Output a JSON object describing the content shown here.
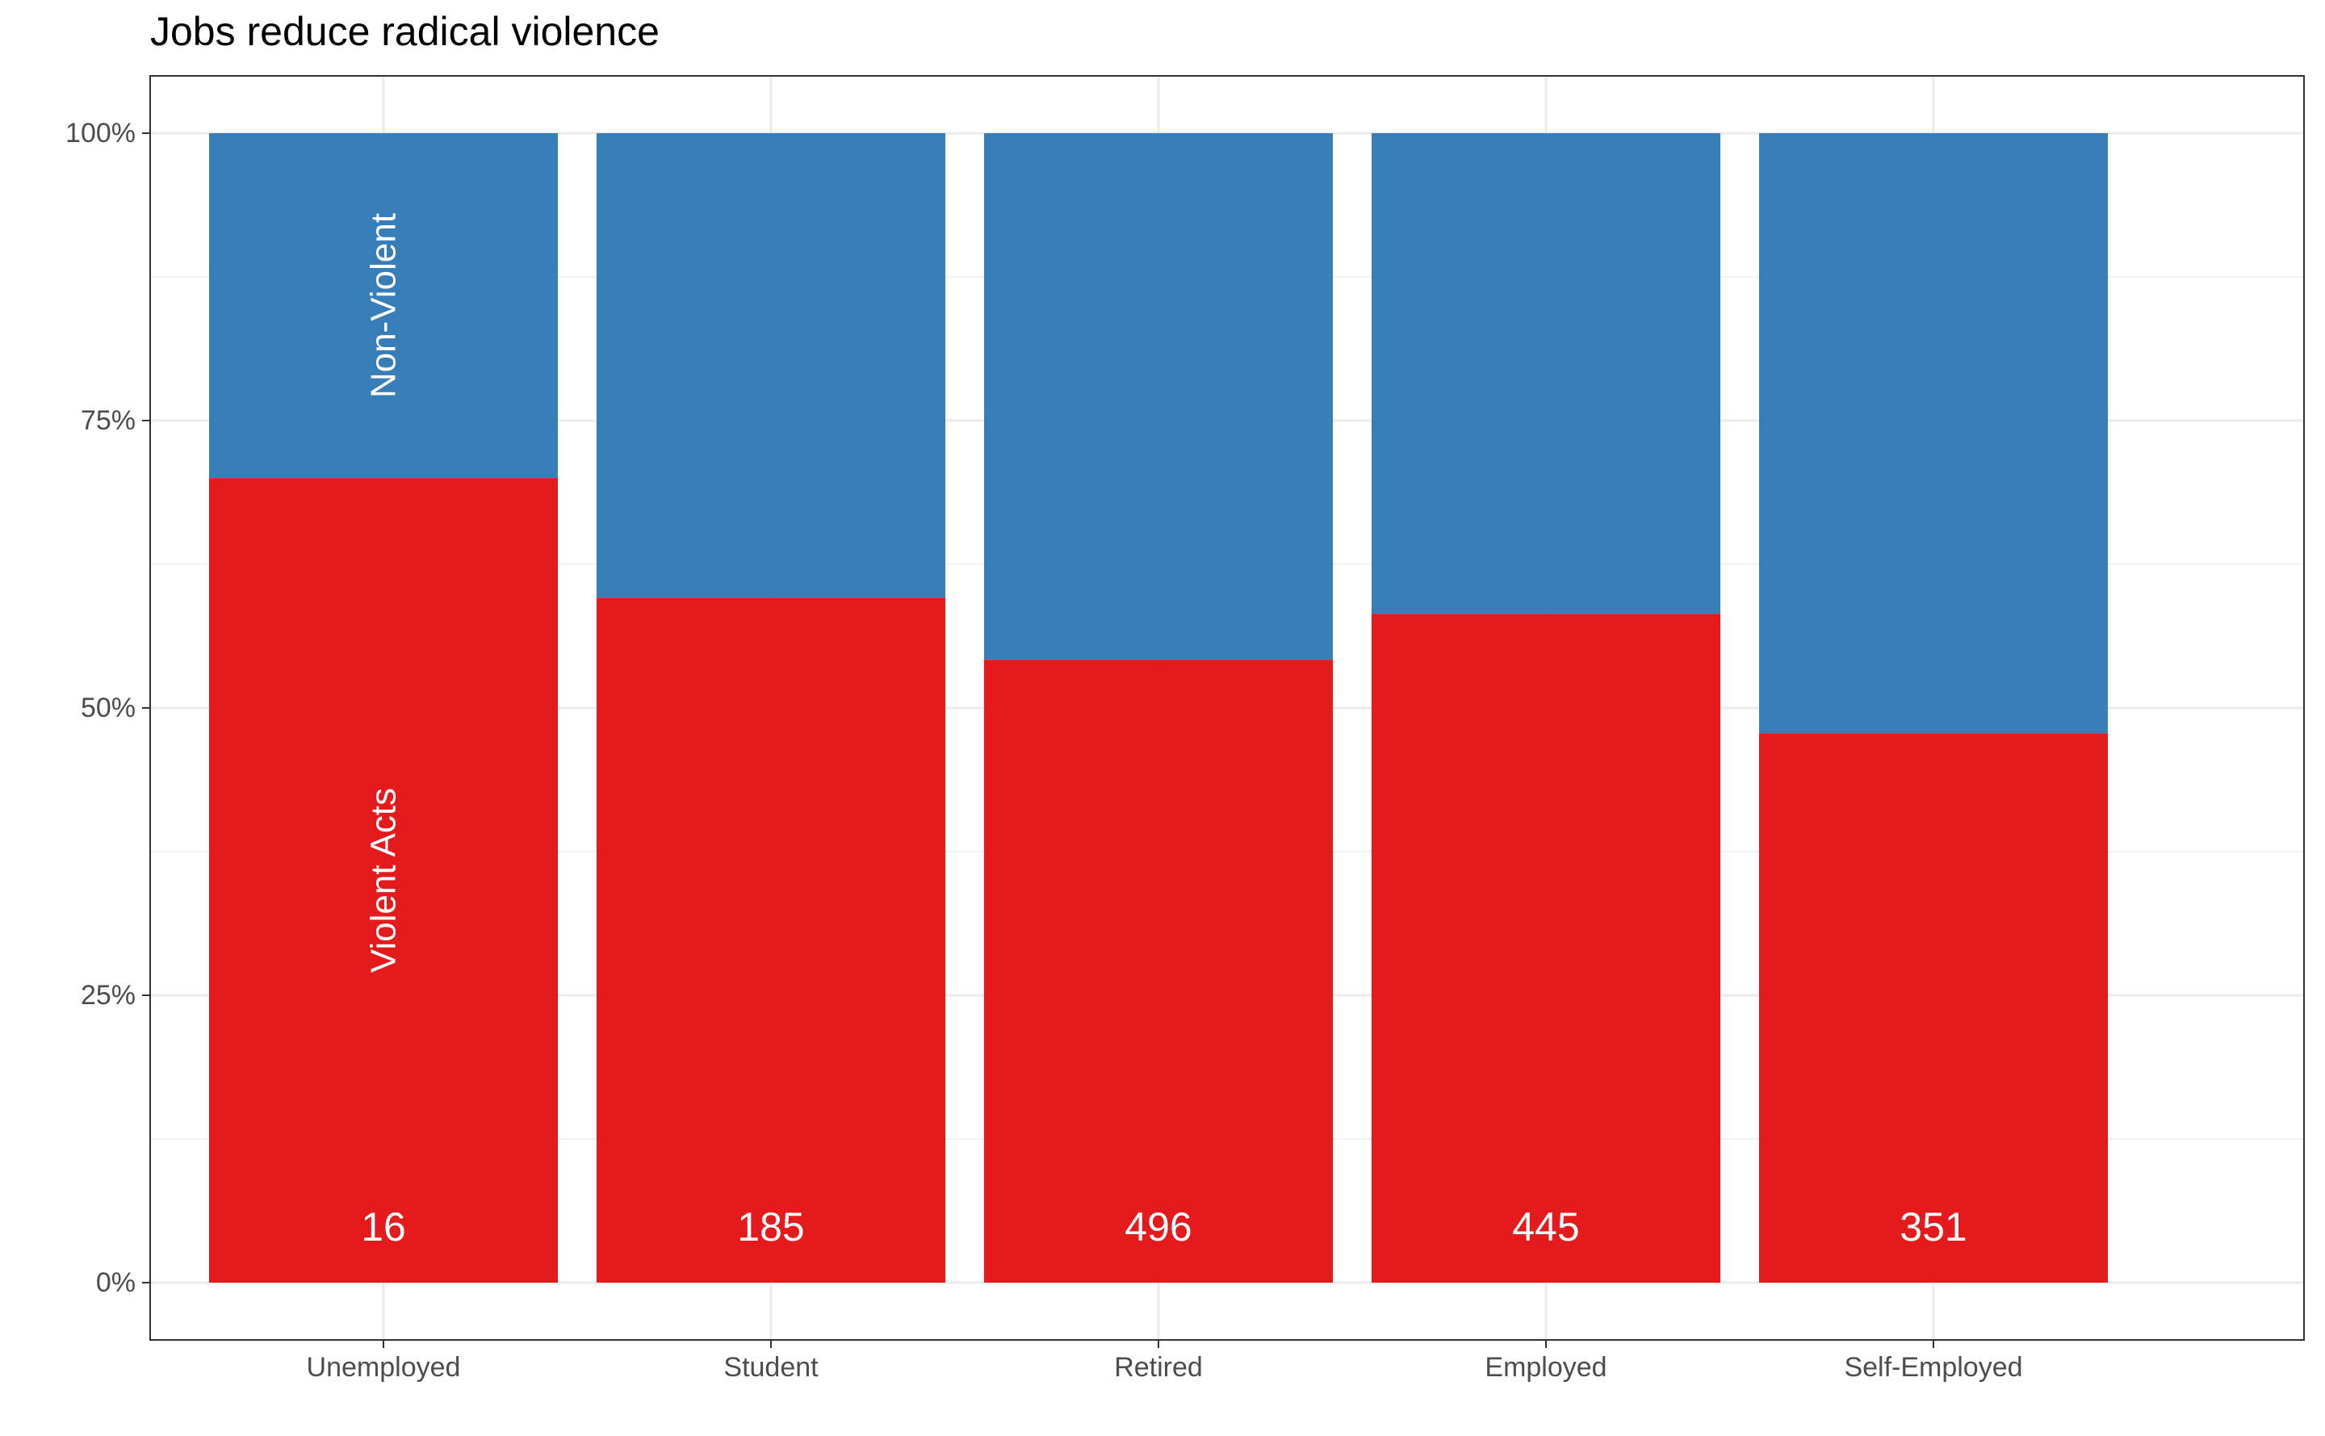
{
  "chart_data": {
    "type": "bar",
    "stacked": true,
    "percent": true,
    "title": "Jobs reduce radical violence",
    "xlabel": "",
    "ylabel": "",
    "ylim": [
      0,
      1
    ],
    "yticks": [
      {
        "value": 0,
        "label": "0%"
      },
      {
        "value": 0.25,
        "label": "25%"
      },
      {
        "value": 0.5,
        "label": "50%"
      },
      {
        "value": 0.75,
        "label": "75%"
      },
      {
        "value": 1,
        "label": "100%"
      }
    ],
    "categories": [
      "Unemployed",
      "Student",
      "Retired",
      "Employed",
      "Self-Employed"
    ],
    "series": [
      {
        "name": "Violent Acts",
        "color": "#E41A1C",
        "values": [
          0.7,
          0.596,
          0.542,
          0.582,
          0.478
        ]
      },
      {
        "name": "Non-Violent",
        "color": "#377EB8",
        "values": [
          0.3,
          0.404,
          0.458,
          0.418,
          0.522
        ]
      }
    ],
    "counts": [
      "16",
      "185",
      "496",
      "445",
      "351"
    ],
    "grid": true,
    "legend": "none"
  }
}
